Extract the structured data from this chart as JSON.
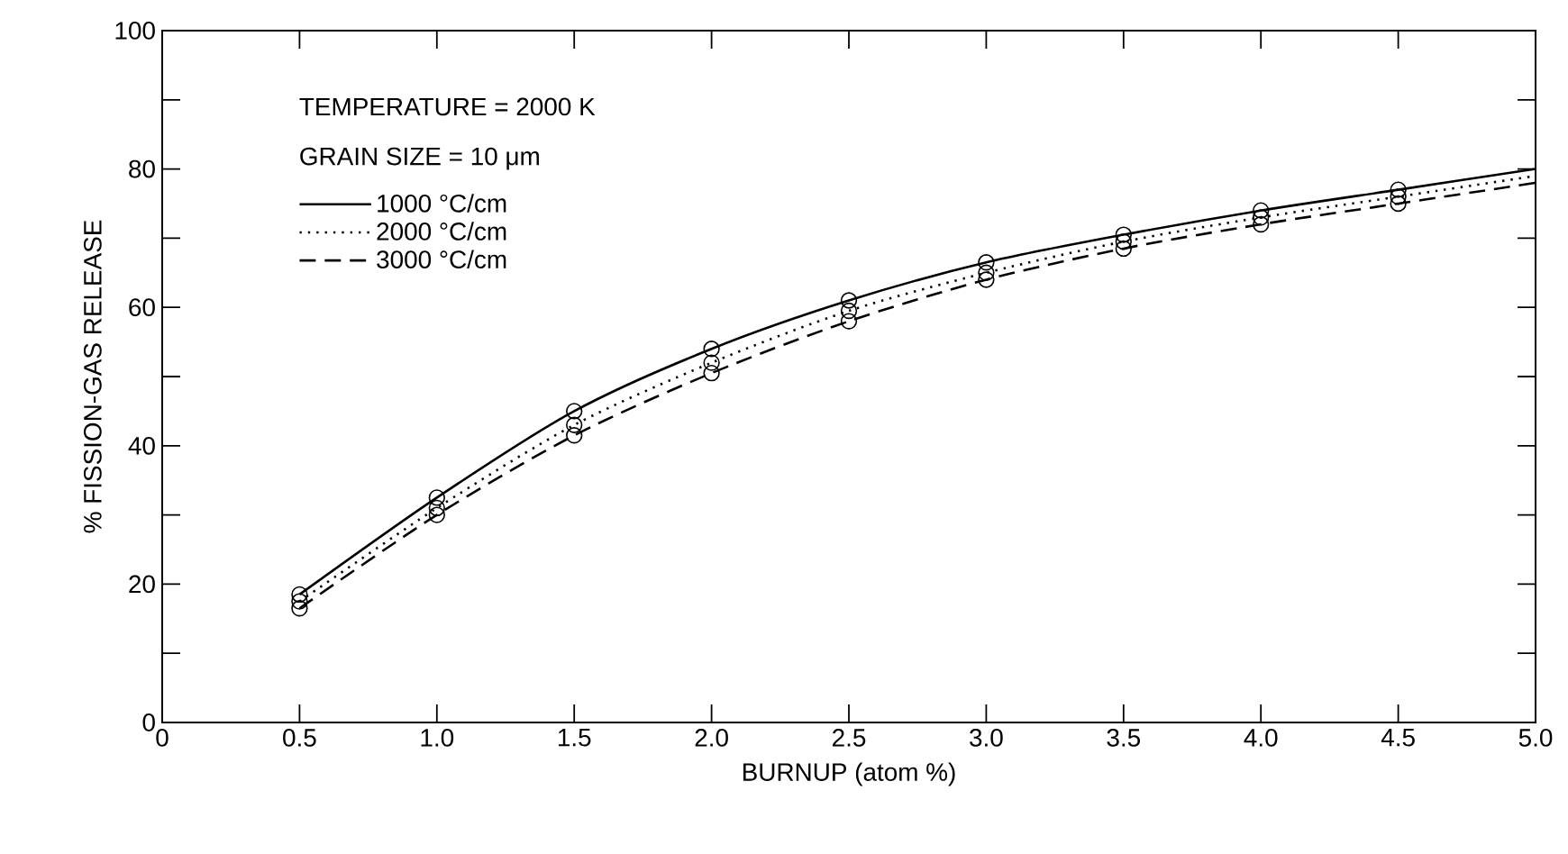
{
  "chart_data": {
    "type": "line",
    "xlabel": "BURNUP (atom %)",
    "ylabel": "% FISSION-GAS RELEASE",
    "annotations": [
      "TEMPERATURE = 2000 K",
      "GRAIN SIZE = 10 μm"
    ],
    "x": [
      0.5,
      1.0,
      1.5,
      2.0,
      2.5,
      3.0,
      3.5,
      4.0,
      4.5,
      5.0
    ],
    "series": [
      {
        "name": "1000 °C/cm",
        "color": "#000000",
        "line_style": "solid",
        "values": [
          18.5,
          32.5,
          45,
          54,
          61,
          66.5,
          70.5,
          74,
          77,
          80
        ]
      },
      {
        "name": "2000 °C/cm",
        "color": "#000000",
        "line_style": "dotted",
        "values": [
          17.5,
          31,
          43,
          52,
          59.5,
          65,
          69.5,
          73,
          76,
          79
        ]
      },
      {
        "name": "3000 °C/cm",
        "color": "#000000",
        "line_style": "dashed",
        "values": [
          16.5,
          30,
          41.5,
          50.5,
          58,
          64,
          68.5,
          72,
          75,
          78
        ]
      }
    ],
    "marker": "circle",
    "legend": "top left",
    "grid": false,
    "xlim": [
      0,
      5
    ],
    "ylim": [
      0,
      100
    ],
    "xticks": [
      0,
      0.5,
      {
        "value": 1,
        "label": "1.0"
      },
      1.5,
      {
        "value": 2,
        "label": "2.0"
      },
      2.5,
      {
        "value": 3,
        "label": "3.0"
      },
      3.5,
      {
        "value": 4,
        "label": "4.0"
      },
      4.5,
      {
        "value": 5,
        "label": "5.0"
      }
    ],
    "yticks": [
      0,
      {
        "value": 10,
        "label": null
      },
      20,
      {
        "value": 30,
        "label": null
      },
      40,
      {
        "value": 50,
        "label": null
      },
      60,
      {
        "value": 70,
        "label": null
      },
      80,
      {
        "value": 90,
        "label": null
      },
      100
    ]
  }
}
